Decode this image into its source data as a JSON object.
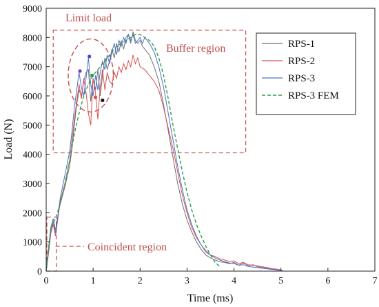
{
  "chart_data": {
    "type": "line",
    "xlabel": "Time (ms)",
    "ylabel": "Load (N)",
    "xlim": [
      0,
      7
    ],
    "ylim": [
      0,
      9000
    ],
    "x_ticks": [
      0,
      1,
      2,
      3,
      4,
      5,
      6,
      7
    ],
    "y_ticks": [
      0,
      1000,
      2000,
      3000,
      4000,
      5000,
      6000,
      7000,
      8000,
      9000
    ],
    "grid": false,
    "legend_position": "top-right",
    "series": [
      {
        "name": "RPS-1",
        "color": "#6e6e6e",
        "style": "solid",
        "points": [
          [
            0,
            0
          ],
          [
            0.05,
            800
          ],
          [
            0.1,
            1500
          ],
          [
            0.15,
            1800
          ],
          [
            0.2,
            1400
          ],
          [
            0.25,
            1900
          ],
          [
            0.3,
            2300
          ],
          [
            0.4,
            2900
          ],
          [
            0.5,
            3600
          ],
          [
            0.55,
            4200
          ],
          [
            0.6,
            5000
          ],
          [
            0.65,
            5700
          ],
          [
            0.7,
            6200
          ],
          [
            0.75,
            6000
          ],
          [
            0.8,
            6500
          ],
          [
            0.85,
            6800
          ],
          [
            0.9,
            6900
          ],
          [
            0.95,
            5800
          ],
          [
            1.0,
            6600
          ],
          [
            1.05,
            6200
          ],
          [
            1.1,
            6900
          ],
          [
            1.15,
            6000
          ],
          [
            1.2,
            6700
          ],
          [
            1.25,
            7300
          ],
          [
            1.3,
            6900
          ],
          [
            1.35,
            7200
          ],
          [
            1.4,
            7600
          ],
          [
            1.45,
            7300
          ],
          [
            1.5,
            7800
          ],
          [
            1.55,
            7500
          ],
          [
            1.6,
            7900
          ],
          [
            1.65,
            7600
          ],
          [
            1.7,
            8000
          ],
          [
            1.75,
            8100
          ],
          [
            1.8,
            7800
          ],
          [
            1.85,
            8200
          ],
          [
            1.9,
            7900
          ],
          [
            1.95,
            7800
          ],
          [
            2.0,
            7900
          ],
          [
            2.05,
            7700
          ],
          [
            2.1,
            7600
          ],
          [
            2.2,
            7400
          ],
          [
            2.3,
            7000
          ],
          [
            2.4,
            6500
          ],
          [
            2.5,
            5700
          ],
          [
            2.6,
            4800
          ],
          [
            2.7,
            3900
          ],
          [
            2.8,
            3000
          ],
          [
            2.9,
            2300
          ],
          [
            3.0,
            1750
          ],
          [
            3.1,
            1350
          ],
          [
            3.2,
            1000
          ],
          [
            3.3,
            750
          ],
          [
            3.4,
            550
          ],
          [
            3.5,
            450
          ],
          [
            3.6,
            380
          ],
          [
            3.7,
            320
          ],
          [
            3.8,
            300
          ],
          [
            3.9,
            250
          ],
          [
            4.0,
            300
          ],
          [
            4.1,
            200
          ],
          [
            4.2,
            280
          ],
          [
            4.3,
            180
          ],
          [
            4.4,
            220
          ],
          [
            4.5,
            150
          ],
          [
            4.6,
            120
          ],
          [
            4.7,
            100
          ],
          [
            4.8,
            80
          ],
          [
            4.9,
            60
          ],
          [
            5.0,
            40
          ],
          [
            5.05,
            0
          ]
        ]
      },
      {
        "name": "RPS-2",
        "color": "#d94f4f",
        "style": "solid",
        "points": [
          [
            0,
            0
          ],
          [
            0.05,
            600
          ],
          [
            0.1,
            1300
          ],
          [
            0.15,
            1600
          ],
          [
            0.2,
            1200
          ],
          [
            0.25,
            1800
          ],
          [
            0.3,
            2400
          ],
          [
            0.4,
            3000
          ],
          [
            0.5,
            3800
          ],
          [
            0.55,
            4500
          ],
          [
            0.6,
            5200
          ],
          [
            0.65,
            5800
          ],
          [
            0.7,
            6400
          ],
          [
            0.75,
            5900
          ],
          [
            0.8,
            6600
          ],
          [
            0.85,
            6100
          ],
          [
            0.9,
            5400
          ],
          [
            0.95,
            5000
          ],
          [
            1.0,
            6600
          ],
          [
            1.05,
            6100
          ],
          [
            1.1,
            5200
          ],
          [
            1.15,
            6300
          ],
          [
            1.2,
            6900
          ],
          [
            1.25,
            6200
          ],
          [
            1.3,
            6800
          ],
          [
            1.35,
            6500
          ],
          [
            1.4,
            6400
          ],
          [
            1.45,
            6800
          ],
          [
            1.5,
            6600
          ],
          [
            1.55,
            7000
          ],
          [
            1.6,
            6800
          ],
          [
            1.65,
            7100
          ],
          [
            1.7,
            6900
          ],
          [
            1.75,
            7200
          ],
          [
            1.8,
            7000
          ],
          [
            1.85,
            7400
          ],
          [
            1.9,
            7100
          ],
          [
            1.95,
            7300
          ],
          [
            2.0,
            7000
          ],
          [
            2.1,
            6900
          ],
          [
            2.2,
            6700
          ],
          [
            2.3,
            6500
          ],
          [
            2.4,
            6200
          ],
          [
            2.5,
            5600
          ],
          [
            2.6,
            4900
          ],
          [
            2.7,
            4200
          ],
          [
            2.8,
            3400
          ],
          [
            2.9,
            2600
          ],
          [
            3.0,
            2000
          ],
          [
            3.1,
            1500
          ],
          [
            3.2,
            1150
          ],
          [
            3.3,
            900
          ],
          [
            3.4,
            650
          ],
          [
            3.5,
            550
          ],
          [
            3.6,
            500
          ],
          [
            3.7,
            420
          ],
          [
            3.8,
            380
          ],
          [
            3.9,
            330
          ],
          [
            4.0,
            350
          ],
          [
            4.1,
            260
          ],
          [
            4.2,
            300
          ],
          [
            4.3,
            220
          ],
          [
            4.4,
            200
          ],
          [
            4.5,
            180
          ],
          [
            4.6,
            150
          ],
          [
            4.7,
            120
          ],
          [
            4.8,
            90
          ],
          [
            4.9,
            70
          ],
          [
            5.0,
            40
          ],
          [
            5.05,
            0
          ]
        ]
      },
      {
        "name": "RPS-3",
        "color": "#4a6fcf",
        "style": "solid",
        "points": [
          [
            0,
            0
          ],
          [
            0.05,
            700
          ],
          [
            0.1,
            1400
          ],
          [
            0.15,
            1700
          ],
          [
            0.2,
            1300
          ],
          [
            0.25,
            1900
          ],
          [
            0.3,
            2500
          ],
          [
            0.4,
            3300
          ],
          [
            0.5,
            4100
          ],
          [
            0.55,
            4800
          ],
          [
            0.6,
            5600
          ],
          [
            0.65,
            6200
          ],
          [
            0.7,
            6800
          ],
          [
            0.75,
            6300
          ],
          [
            0.8,
            6000
          ],
          [
            0.85,
            6600
          ],
          [
            0.9,
            7300
          ],
          [
            0.95,
            6400
          ],
          [
            1.0,
            6000
          ],
          [
            1.05,
            6700
          ],
          [
            1.1,
            6200
          ],
          [
            1.15,
            6800
          ],
          [
            1.2,
            7200
          ],
          [
            1.25,
            6900
          ],
          [
            1.3,
            7400
          ],
          [
            1.35,
            7100
          ],
          [
            1.4,
            7500
          ],
          [
            1.45,
            7800
          ],
          [
            1.5,
            7400
          ],
          [
            1.55,
            7900
          ],
          [
            1.6,
            7700
          ],
          [
            1.65,
            8000
          ],
          [
            1.7,
            7800
          ],
          [
            1.75,
            8100
          ],
          [
            1.8,
            7900
          ],
          [
            1.85,
            8100
          ],
          [
            1.9,
            7800
          ],
          [
            1.95,
            7900
          ],
          [
            2.0,
            8000
          ],
          [
            2.05,
            7800
          ],
          [
            2.1,
            8000
          ],
          [
            2.2,
            7800
          ],
          [
            2.3,
            7500
          ],
          [
            2.4,
            7000
          ],
          [
            2.5,
            6300
          ],
          [
            2.6,
            5400
          ],
          [
            2.7,
            4500
          ],
          [
            2.8,
            3600
          ],
          [
            2.9,
            2800
          ],
          [
            3.0,
            2100
          ],
          [
            3.1,
            1600
          ],
          [
            3.2,
            1200
          ],
          [
            3.3,
            900
          ],
          [
            3.4,
            700
          ],
          [
            3.5,
            550
          ],
          [
            3.6,
            450
          ],
          [
            3.7,
            380
          ],
          [
            3.8,
            320
          ],
          [
            3.9,
            280
          ],
          [
            4.0,
            260
          ],
          [
            4.1,
            200
          ],
          [
            4.2,
            220
          ],
          [
            4.3,
            160
          ],
          [
            4.4,
            140
          ],
          [
            4.5,
            120
          ],
          [
            4.6,
            100
          ],
          [
            4.7,
            80
          ],
          [
            4.8,
            60
          ],
          [
            4.9,
            40
          ],
          [
            5.0,
            20
          ],
          [
            5.05,
            0
          ]
        ]
      },
      {
        "name": "RPS-3 FEM",
        "color": "#2e9e47",
        "style": "dashed",
        "points": [
          [
            0,
            0
          ],
          [
            0.1,
            1500
          ],
          [
            0.2,
            1800
          ],
          [
            0.3,
            2300
          ],
          [
            0.4,
            3000
          ],
          [
            0.5,
            3800
          ],
          [
            0.6,
            4700
          ],
          [
            0.7,
            5400
          ],
          [
            0.8,
            6000
          ],
          [
            0.9,
            6400
          ],
          [
            1.0,
            6700
          ],
          [
            1.1,
            6900
          ],
          [
            1.2,
            7100
          ],
          [
            1.3,
            7300
          ],
          [
            1.4,
            7500
          ],
          [
            1.5,
            7700
          ],
          [
            1.6,
            7800
          ],
          [
            1.7,
            7900
          ],
          [
            1.8,
            8000
          ],
          [
            1.9,
            8100
          ],
          [
            2.0,
            8100
          ],
          [
            2.1,
            8000
          ],
          [
            2.2,
            7900
          ],
          [
            2.3,
            7700
          ],
          [
            2.4,
            7300
          ],
          [
            2.5,
            6700
          ],
          [
            2.6,
            5900
          ],
          [
            2.7,
            5000
          ],
          [
            2.8,
            4200
          ],
          [
            2.9,
            3400
          ],
          [
            3.0,
            2700
          ],
          [
            3.1,
            2100
          ],
          [
            3.2,
            1600
          ],
          [
            3.3,
            1200
          ],
          [
            3.4,
            850
          ],
          [
            3.5,
            550
          ],
          [
            3.6,
            300
          ],
          [
            3.7,
            150
          ]
        ]
      }
    ],
    "markers": [
      {
        "x": 0.72,
        "y": 6850,
        "color": "#7b3fb3"
      },
      {
        "x": 0.92,
        "y": 7350,
        "color": "#3b4fcf"
      },
      {
        "x": 0.98,
        "y": 6700,
        "color": "#2e9e47"
      },
      {
        "x": 1.05,
        "y": 5950,
        "color": "#d94f4f"
      },
      {
        "x": 1.2,
        "y": 5850,
        "color": "#111111"
      }
    ],
    "annotations": {
      "limit_load": "Limit load",
      "buffer_region": "Buffer region",
      "coincident_region": "Coincident region"
    },
    "limit_load_ellipse": {
      "cx": 0.95,
      "cy": 6700,
      "rx": 0.48,
      "ry": 1250
    },
    "buffer_region_box": {
      "x0": 0.15,
      "x1": 4.25,
      "y0": 4050,
      "y1": 8250
    },
    "coincident_region_box": {
      "x0": 0.0,
      "x1": 0.2,
      "y0": 0,
      "y1": 1850
    }
  }
}
